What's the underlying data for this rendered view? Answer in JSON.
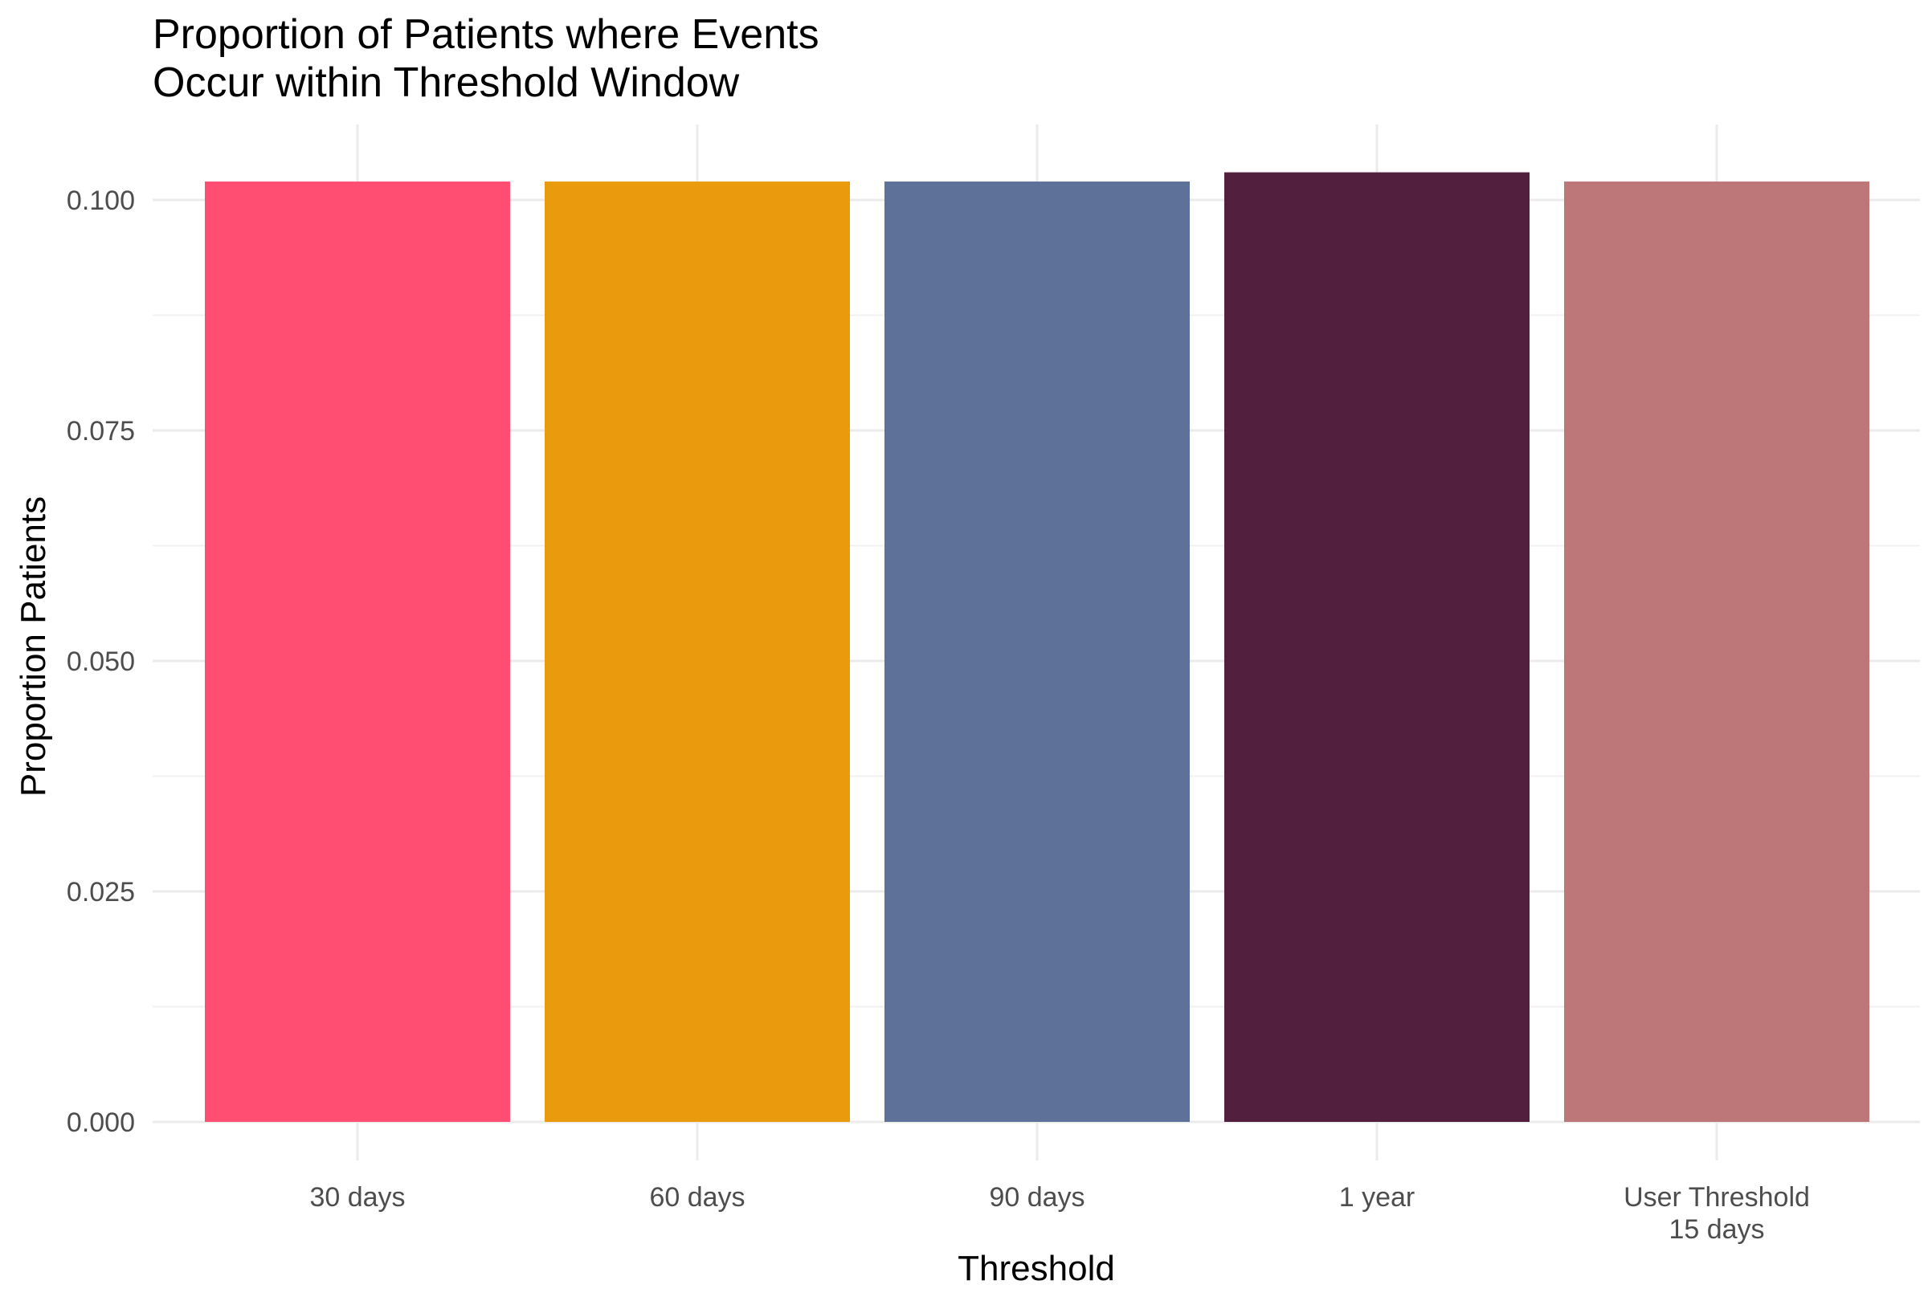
{
  "chart_data": {
    "type": "bar",
    "title_lines": [
      "Proportion of Patients where Events",
      "Occur within Threshold Window"
    ],
    "xlabel": "Threshold",
    "ylabel": "Proportion Patients",
    "categories": [
      [
        "30 days"
      ],
      [
        "60 days"
      ],
      [
        "90 days"
      ],
      [
        "1 year"
      ],
      [
        "User Threshold",
        "15 days"
      ]
    ],
    "values": [
      0.102,
      0.102,
      0.102,
      0.103,
      0.102
    ],
    "colors": [
      "#FF4E72",
      "#EA9B0D",
      "#5E7198",
      "#531F3E",
      "#BD7778"
    ],
    "ylim": [
      0,
      0.105
    ],
    "yticks": [
      0.0,
      0.025,
      0.05,
      0.075,
      0.1
    ],
    "ytick_labels": [
      "0.000",
      "0.025",
      "0.050",
      "0.075",
      "0.100"
    ],
    "grid": true,
    "legend": "none"
  }
}
